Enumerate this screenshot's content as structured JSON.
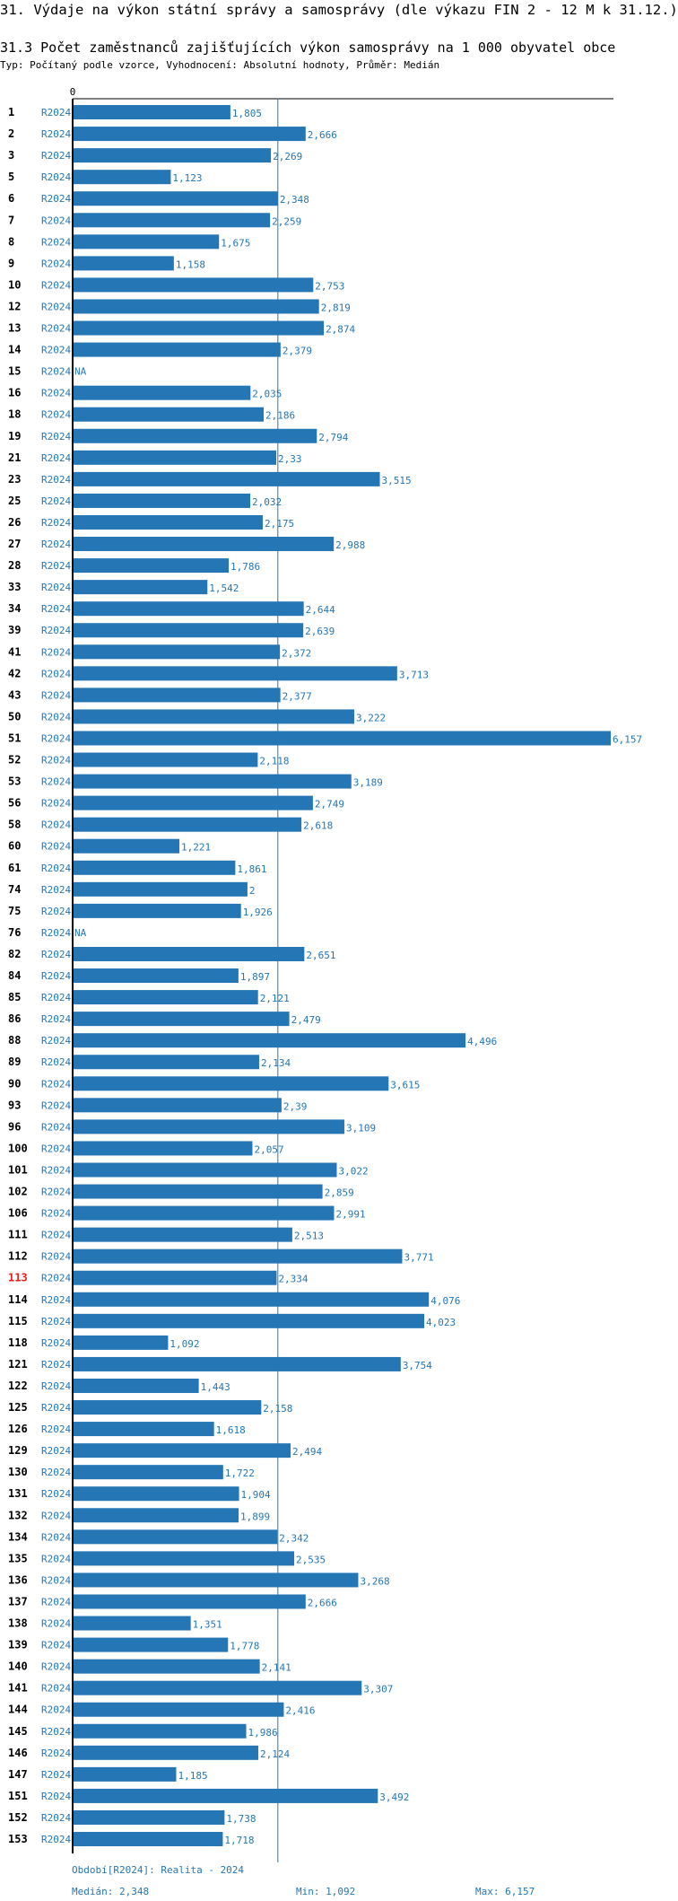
{
  "header": {
    "title": "31. Výdaje na výkon státní správy a samosprávy (dle výkazu FIN 2 - 12 M k 31.12.)",
    "subtitle": "31.3 Počet zaměstnanců zajišťujících výkon samosprávy na 1 000 obyvatel obce",
    "meta": "Typ: Počítaný podle vzorce, Vyhodnocení: Absolutní hodnoty, Průměr: Medián"
  },
  "footer": {
    "period": "Období[R2024]: Realita - 2024",
    "median": "Medián: 2,348",
    "min": "Min: 1,092",
    "max": "Max: 6,157"
  },
  "colors": {
    "bar": "#2576b5",
    "highlight": "#e8201c",
    "axis": "#000000"
  },
  "chart_data": {
    "type": "bar",
    "orientation": "horizontal",
    "title": "31.3 Počet zaměstnanců zajišťujících výkon samosprávy na 1 000 obyvatel obce",
    "series_label": "R2024",
    "axis_zero_label": "0",
    "xlim": [
      0,
      6.157
    ],
    "median": 2.348,
    "highlight_category": "113",
    "missing_label": "NA",
    "categories": [
      "1",
      "2",
      "3",
      "5",
      "6",
      "7",
      "8",
      "9",
      "10",
      "12",
      "13",
      "14",
      "15",
      "16",
      "18",
      "19",
      "21",
      "23",
      "25",
      "26",
      "27",
      "28",
      "33",
      "34",
      "39",
      "41",
      "42",
      "43",
      "50",
      "51",
      "52",
      "53",
      "56",
      "58",
      "60",
      "61",
      "74",
      "75",
      "76",
      "82",
      "84",
      "85",
      "86",
      "88",
      "89",
      "90",
      "93",
      "96",
      "100",
      "101",
      "102",
      "106",
      "111",
      "112",
      "113",
      "114",
      "115",
      "118",
      "121",
      "122",
      "125",
      "126",
      "129",
      "130",
      "131",
      "132",
      "134",
      "135",
      "136",
      "137",
      "138",
      "139",
      "140",
      "141",
      "144",
      "145",
      "146",
      "147",
      "151",
      "152",
      "153"
    ],
    "values": [
      1.805,
      2.666,
      2.269,
      1.123,
      2.348,
      2.259,
      1.675,
      1.158,
      2.753,
      2.819,
      2.874,
      2.379,
      null,
      2.035,
      2.186,
      2.794,
      2.33,
      3.515,
      2.032,
      2.175,
      2.988,
      1.786,
      1.542,
      2.644,
      2.639,
      2.372,
      3.713,
      2.377,
      3.222,
      6.157,
      2.118,
      3.189,
      2.749,
      2.618,
      1.221,
      1.861,
      2,
      1.926,
      null,
      2.651,
      1.897,
      2.121,
      2.479,
      4.496,
      2.134,
      3.615,
      2.39,
      3.109,
      2.057,
      3.022,
      2.859,
      2.991,
      2.513,
      3.771,
      2.334,
      4.076,
      4.023,
      1.092,
      3.754,
      1.443,
      2.158,
      1.618,
      2.494,
      1.722,
      1.904,
      1.899,
      2.342,
      2.535,
      3.268,
      2.666,
      1.351,
      1.778,
      2.141,
      3.307,
      2.416,
      1.986,
      2.124,
      1.185,
      3.492,
      1.738,
      1.718
    ],
    "value_labels": [
      "1,805",
      "2,666",
      "2,269",
      "1,123",
      "2,348",
      "2,259",
      "1,675",
      "1,158",
      "2,753",
      "2,819",
      "2,874",
      "2,379",
      "NA",
      "2,035",
      "2,186",
      "2,794",
      "2,33",
      "3,515",
      "2,032",
      "2,175",
      "2,988",
      "1,786",
      "1,542",
      "2,644",
      "2,639",
      "2,372",
      "3,713",
      "2,377",
      "3,222",
      "6,157",
      "2,118",
      "3,189",
      "2,749",
      "2,618",
      "1,221",
      "1,861",
      "2",
      "1,926",
      "NA",
      "2,651",
      "1,897",
      "2,121",
      "2,479",
      "4,496",
      "2,134",
      "3,615",
      "2,39",
      "3,109",
      "2,057",
      "3,022",
      "2,859",
      "2,991",
      "2,513",
      "3,771",
      "2,334",
      "4,076",
      "4,023",
      "1,092",
      "3,754",
      "1,443",
      "2,158",
      "1,618",
      "2,494",
      "1,722",
      "1,904",
      "1,899",
      "2,342",
      "2,535",
      "3,268",
      "2,666",
      "1,351",
      "1,778",
      "2,141",
      "3,307",
      "2,416",
      "1,986",
      "2,124",
      "1,185",
      "3,492",
      "1,738",
      "1,718"
    ]
  }
}
